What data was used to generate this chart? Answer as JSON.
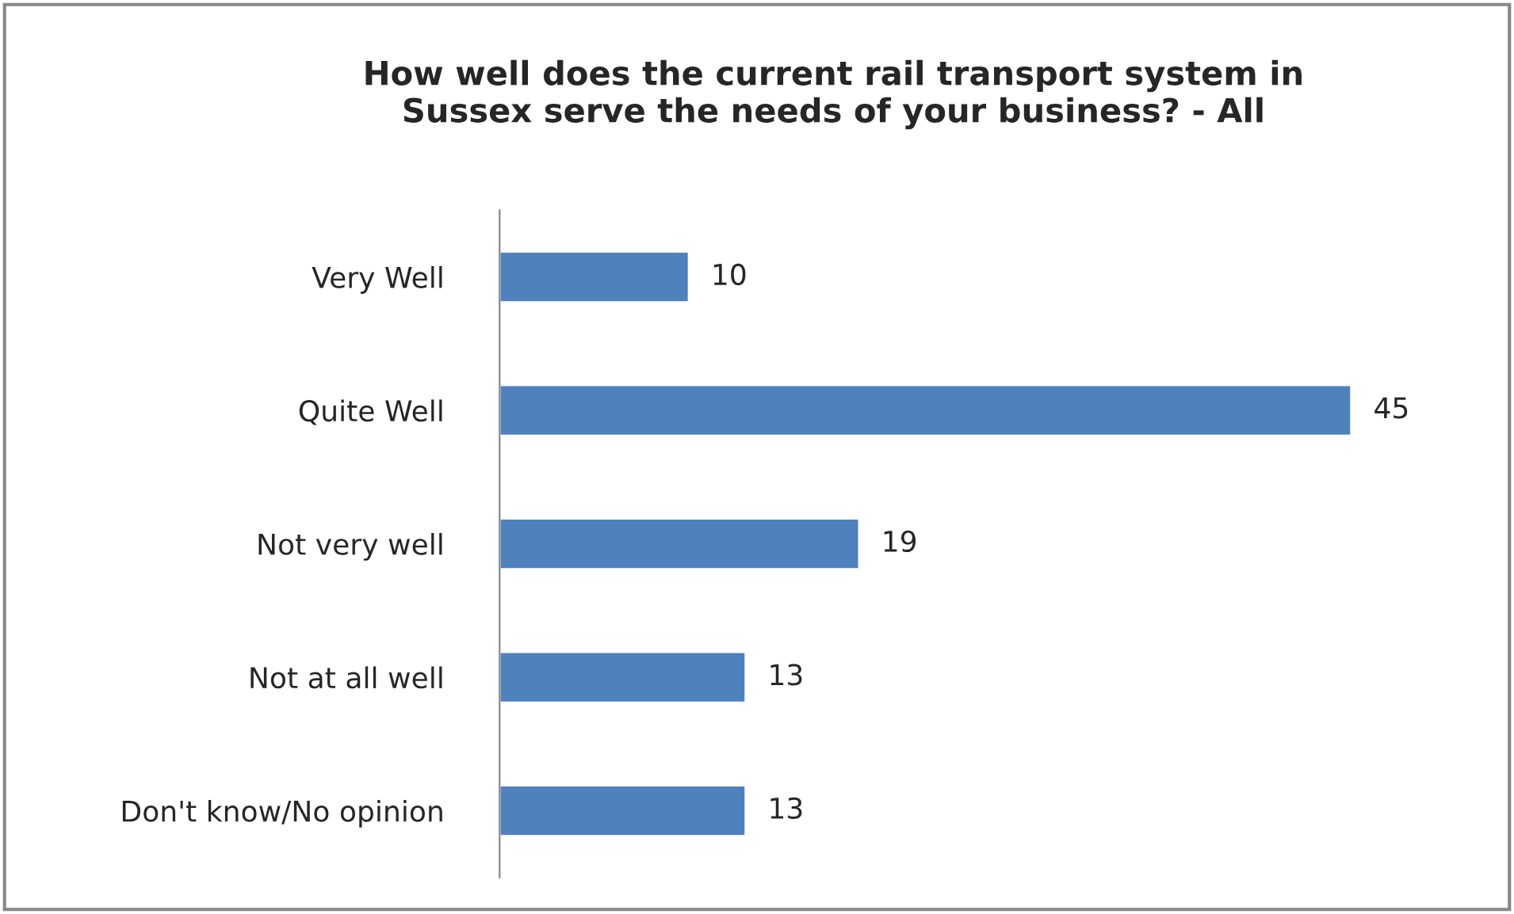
{
  "chart_data": {
    "type": "bar",
    "orientation": "horizontal",
    "title": "How well does the current rail transport system in\nSussex serve the needs of your business? - All",
    "categories": [
      "Very Well",
      "Quite Well",
      "Not very well",
      "Not at all well",
      "Don't know/No opinion"
    ],
    "values": [
      10,
      45,
      19,
      13,
      13
    ],
    "color": "#4f81bd",
    "data_labels": true,
    "grid": false,
    "legend": false
  }
}
